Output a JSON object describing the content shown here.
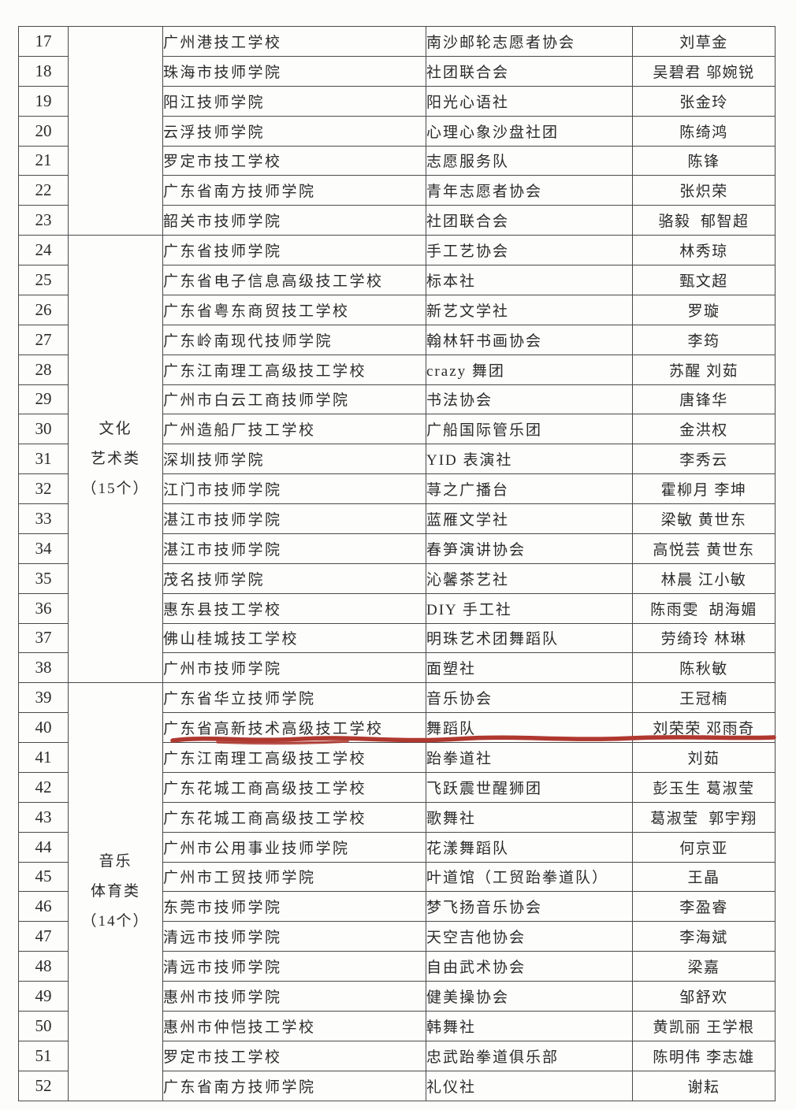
{
  "document": {
    "type": "scanned-award-list-table",
    "language": "zh-CN"
  },
  "colors": {
    "page_background": "#fcfcfb",
    "table_border": "#4a4a4a",
    "text": "#2b2b2b",
    "highlight_underline": "#b0382f"
  },
  "highlight": {
    "row_no": "40",
    "style": "hand-drawn red underline",
    "color": "#b0382f"
  },
  "table": {
    "columns": [
      "row-number",
      "category",
      "school",
      "club",
      "names"
    ],
    "groups": [
      {
        "category_lines": [],
        "rows": [
          {
            "no": "17",
            "school": "广州港技工学校",
            "club": "南沙邮轮志愿者协会",
            "names": "刘草金"
          },
          {
            "no": "18",
            "school": "珠海市技师学院",
            "club": "社团联合会",
            "names": "吴碧君 邬婉锐"
          },
          {
            "no": "19",
            "school": "阳江技师学院",
            "club": "阳光心语社",
            "names": "张金玲"
          },
          {
            "no": "20",
            "school": "云浮技师学院",
            "club": "心理心象沙盘社团",
            "names": "陈绮鸿"
          },
          {
            "no": "21",
            "school": "罗定市技工学校",
            "club": "志愿服务队",
            "names": "陈锋"
          },
          {
            "no": "22",
            "school": "广东省南方技师学院",
            "club": "青年志愿者协会",
            "names": "张炽荣"
          },
          {
            "no": "23",
            "school": "韶关市技师学院",
            "club": "社团联合会",
            "names": "骆毅  郁智超"
          }
        ]
      },
      {
        "category_lines": [
          "文化",
          "艺术类",
          "（15个）"
        ],
        "rows": [
          {
            "no": "24",
            "school": "广东省技师学院",
            "club": "手工艺协会",
            "names": "林秀琼"
          },
          {
            "no": "25",
            "school": "广东省电子信息高级技工学校",
            "club": "标本社",
            "names": "甄文超"
          },
          {
            "no": "26",
            "school": "广东省粤东商贸技工学校",
            "club": "新艺文学社",
            "names": "罗璇"
          },
          {
            "no": "27",
            "school": "广东岭南现代技师学院",
            "club": "翰林轩书画协会",
            "names": "李筠"
          },
          {
            "no": "28",
            "school": "广东江南理工高级技工学校",
            "club": "crazy 舞团",
            "names": "苏醒 刘茹"
          },
          {
            "no": "29",
            "school": "广州市白云工商技师学院",
            "club": "书法协会",
            "names": "唐锋华"
          },
          {
            "no": "30",
            "school": "广州造船厂技工学校",
            "club": "广船国际管乐团",
            "names": "金洪权"
          },
          {
            "no": "31",
            "school": "深圳技师学院",
            "club": "YID 表演社",
            "names": "李秀云"
          },
          {
            "no": "32",
            "school": "江门市技师学院",
            "club": "荨之广播台",
            "names": "霍柳月 李坤"
          },
          {
            "no": "33",
            "school": "湛江市技师学院",
            "club": "蓝雁文学社",
            "names": "梁敏 黄世东"
          },
          {
            "no": "34",
            "school": "湛江市技师学院",
            "club": "春笋演讲协会",
            "names": "高悦芸 黄世东"
          },
          {
            "no": "35",
            "school": "茂名技师学院",
            "club": "沁馨茶艺社",
            "names": "林晨 江小敏"
          },
          {
            "no": "36",
            "school": "惠东县技工学校",
            "club": "DIY 手工社",
            "names": "陈雨雯  胡海媚"
          },
          {
            "no": "37",
            "school": "佛山桂城技工学校",
            "club": "明珠艺术团舞蹈队",
            "names": "劳绮玲 林琳"
          },
          {
            "no": "38",
            "school": "广州市技师学院",
            "club": "面塑社",
            "names": "陈秋敏"
          }
        ]
      },
      {
        "category_lines": [
          "音乐",
          "体育类",
          "（14个）"
        ],
        "rows": [
          {
            "no": "39",
            "school": "广东省华立技师学院",
            "club": "音乐协会",
            "names": "王冠楠"
          },
          {
            "no": "40",
            "school": "广东省高新技术高级技工学校",
            "club": "舞蹈队",
            "names": "刘荣荣 邓雨奇",
            "underline": true
          },
          {
            "no": "41",
            "school": "广东江南理工高级技工学校",
            "club": "跆拳道社",
            "names": "刘茹"
          },
          {
            "no": "42",
            "school": "广东花城工商高级技工学校",
            "club": "飞跃震世醒狮团",
            "names": "彭玉生 葛淑莹"
          },
          {
            "no": "43",
            "school": "广东花城工商高级技工学校",
            "club": "歌舞社",
            "names": "葛淑莹  郭宇翔"
          },
          {
            "no": "44",
            "school": "广州市公用事业技师学院",
            "club": "花漾舞蹈队",
            "names": "何京亚"
          },
          {
            "no": "45",
            "school": "广州市工贸技师学院",
            "club": "叶道馆（工贸跆拳道队）",
            "names": "王晶"
          },
          {
            "no": "46",
            "school": "东莞市技师学院",
            "club": "梦飞扬音乐协会",
            "names": "李盈睿"
          },
          {
            "no": "47",
            "school": "清远市技师学院",
            "club": "天空吉他协会",
            "names": "李海斌"
          },
          {
            "no": "48",
            "school": "清远市技师学院",
            "club": "自由武术协会",
            "names": "梁嘉"
          },
          {
            "no": "49",
            "school": "惠州市技师学院",
            "club": "健美操协会",
            "names": "邹舒欢"
          },
          {
            "no": "50",
            "school": "惠州市仲恺技工学校",
            "club": "韩舞社",
            "names": "黄凯丽 王学根"
          },
          {
            "no": "51",
            "school": "罗定市技工学校",
            "club": "忠武跆拳道俱乐部",
            "names": "陈明伟 李志雄"
          },
          {
            "no": "52",
            "school": "广东省南方技师学院",
            "club": "礼仪社",
            "names": "谢耘"
          }
        ]
      }
    ]
  }
}
